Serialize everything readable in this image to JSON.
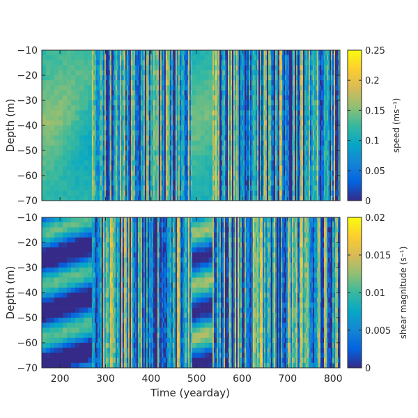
{
  "chart_data": [
    {
      "type": "heatmap",
      "name": "speed",
      "xlabel": "",
      "ylabel": "Depth (m)",
      "xlim": [
        160,
        815
      ],
      "ylim": [
        -70,
        -10
      ],
      "yticks": [
        -10,
        -20,
        -30,
        -40,
        -50,
        -60,
        -70
      ],
      "ytick_labels": [
        "−10",
        "−20",
        "−30",
        "−40",
        "−50",
        "−60",
        "−70"
      ],
      "colorbar": {
        "label": "speed (ms⁻¹)",
        "range": [
          0,
          0.25
        ],
        "ticks": [
          0,
          0.05,
          0.1,
          0.15,
          0.2,
          0.25
        ],
        "tick_labels": [
          "0",
          "0.05",
          "0.1",
          "0.15",
          "0.2",
          "0.25"
        ]
      },
      "segments": [
        {
          "x": [
            160,
            270
          ],
          "character": "smooth",
          "typical_value": 0.12
        },
        {
          "x": [
            270,
            490
          ],
          "character": "noisy vertical stripes",
          "typical_value": 0.08
        },
        {
          "x": [
            490,
            535
          ],
          "character": "smooth",
          "typical_value": 0.11
        },
        {
          "x": [
            535,
            815
          ],
          "character": "noisy vertical stripes",
          "typical_value": 0.08
        }
      ]
    },
    {
      "type": "heatmap",
      "name": "shear",
      "xlabel": "Time (yearday)",
      "ylabel": "Depth (m)",
      "xlim": [
        160,
        815
      ],
      "ylim": [
        -70,
        -10
      ],
      "xticks": [
        200,
        300,
        400,
        500,
        600,
        700,
        800
      ],
      "xtick_labels": [
        "200",
        "300",
        "400",
        "500",
        "600",
        "700",
        "800"
      ],
      "yticks": [
        -10,
        -20,
        -30,
        -40,
        -50,
        -60,
        -70
      ],
      "ytick_labels": [
        "−10",
        "−20",
        "−30",
        "−40",
        "−50",
        "−60",
        "−70"
      ],
      "colorbar": {
        "label": "shear magnitude (s⁻¹)",
        "range": [
          0,
          0.02
        ],
        "ticks": [
          0,
          0.005,
          0.01,
          0.015,
          0.02
        ],
        "tick_labels": [
          "0",
          "0.005",
          "0.01",
          "0.015",
          "0.02"
        ]
      },
      "segments": [
        {
          "x": [
            160,
            270
          ],
          "character": "horizontal bands",
          "typical_value": 0.004
        },
        {
          "x": [
            270,
            490
          ],
          "character": "patchy noise",
          "typical_value": 0.007
        },
        {
          "x": [
            490,
            535
          ],
          "character": "horizontal bands",
          "typical_value": 0.006
        },
        {
          "x": [
            535,
            815
          ],
          "character": "patchy noise",
          "typical_value": 0.007
        }
      ]
    }
  ]
}
